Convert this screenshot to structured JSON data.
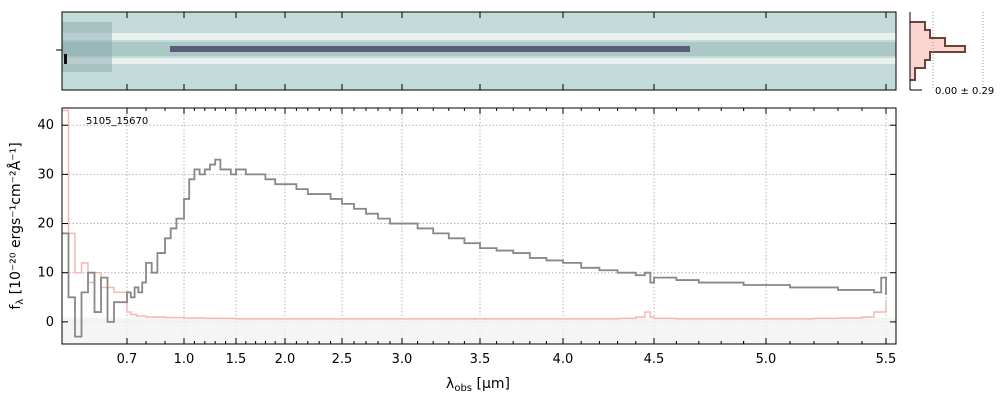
{
  "chart_data": {
    "type": "line",
    "title": "",
    "object_label": "5105_15670",
    "xlabel_main": "λ",
    "xlabel_sub": "obs",
    "xlabel_unit": " [μm]",
    "ylabel_main": "f",
    "ylabel_sub": "λ",
    "ylabel_unit": " [10⁻²⁰ ergs⁻¹cm⁻²Å⁻¹]",
    "x_scale": "reciprocal-like spectral axis",
    "xlim": [
      0.6,
      5.52
    ],
    "ylim": [
      -4.5,
      43.5
    ],
    "x_ticks": [
      {
        "value": 0.7,
        "label": "0.7"
      },
      {
        "value": 1.0,
        "label": "1.0"
      },
      {
        "value": 1.5,
        "label": "1.5"
      },
      {
        "value": 2.0,
        "label": "2.0"
      },
      {
        "value": 2.5,
        "label": "2.5"
      },
      {
        "value": 3.0,
        "label": "3.0"
      },
      {
        "value": 3.5,
        "label": "3.5"
      },
      {
        "value": 4.0,
        "label": "4.0"
      },
      {
        "value": 4.5,
        "label": "4.5"
      },
      {
        "value": 5.0,
        "label": "5.0"
      },
      {
        "value": 5.5,
        "label": "5.5"
      }
    ],
    "y_ticks": [
      {
        "value": 0,
        "label": "0"
      },
      {
        "value": 10,
        "label": "10"
      },
      {
        "value": 20,
        "label": "20"
      },
      {
        "value": 30,
        "label": "30"
      },
      {
        "value": 40,
        "label": "40"
      }
    ],
    "grid": true,
    "colors": {
      "flux": "#888888",
      "error": "#f4b8b4",
      "profile": "#6e4238",
      "profile_fill": "#fbd5cf",
      "image_bg": "#c4dcd9",
      "image_trace": "#4a4a6a"
    },
    "series": [
      {
        "role": "flux",
        "x": [
          0.6,
          0.61,
          0.62,
          0.63,
          0.64,
          0.65,
          0.66,
          0.67,
          0.68,
          0.7,
          0.72,
          0.74,
          0.76,
          0.78,
          0.8,
          0.83,
          0.86,
          0.9,
          0.93,
          0.96,
          1.0,
          1.05,
          1.1,
          1.15,
          1.2,
          1.25,
          1.3,
          1.35,
          1.4,
          1.45,
          1.5,
          1.6,
          1.7,
          1.8,
          1.9,
          2.0,
          2.1,
          2.2,
          2.3,
          2.4,
          2.5,
          2.6,
          2.7,
          2.8,
          2.9,
          3.0,
          3.1,
          3.2,
          3.3,
          3.4,
          3.5,
          3.6,
          3.7,
          3.8,
          3.9,
          4.0,
          4.1,
          4.2,
          4.3,
          4.4,
          4.45,
          4.48,
          4.5,
          4.6,
          4.7,
          4.8,
          4.9,
          5.0,
          5.1,
          5.2,
          5.3,
          5.4,
          5.45,
          5.48,
          5.5
        ],
        "y": [
          18,
          5,
          -3,
          6,
          10,
          2,
          9,
          0,
          4,
          6,
          5,
          7,
          6,
          8,
          12,
          10,
          14,
          17,
          19,
          21,
          25,
          29,
          31,
          30,
          31,
          32,
          33,
          31,
          31,
          30,
          31,
          30,
          30,
          29,
          28,
          28,
          27,
          26,
          26,
          25,
          24,
          23,
          22,
          21,
          20,
          20,
          19,
          18,
          17,
          16,
          15,
          14.5,
          14,
          13,
          12.5,
          12,
          11,
          10.5,
          10,
          9.5,
          10,
          8,
          9,
          8.5,
          8,
          8,
          7.5,
          7.5,
          7,
          7,
          6.5,
          6.5,
          6,
          9,
          5.5
        ]
      },
      {
        "role": "error",
        "x": [
          0.6,
          0.61,
          0.62,
          0.63,
          0.64,
          0.65,
          0.66,
          0.68,
          0.7,
          0.72,
          0.75,
          0.8,
          0.9,
          1.0,
          1.2,
          1.5,
          2.0,
          2.5,
          3.0,
          3.5,
          4.0,
          4.3,
          4.4,
          4.45,
          4.48,
          4.5,
          4.6,
          4.8,
          5.0,
          5.2,
          5.3,
          5.4,
          5.45,
          5.5
        ],
        "y": [
          43,
          18,
          10,
          12,
          8,
          10,
          7,
          6,
          2,
          1.5,
          1.2,
          1,
          0.9,
          0.8,
          0.7,
          0.6,
          0.6,
          0.6,
          0.6,
          0.6,
          0.6,
          0.7,
          1,
          2,
          1,
          0.7,
          0.6,
          0.6,
          0.6,
          0.7,
          0.8,
          1,
          2,
          4.5
        ]
      }
    ],
    "profile_label": "0.00 ± 0.29"
  }
}
